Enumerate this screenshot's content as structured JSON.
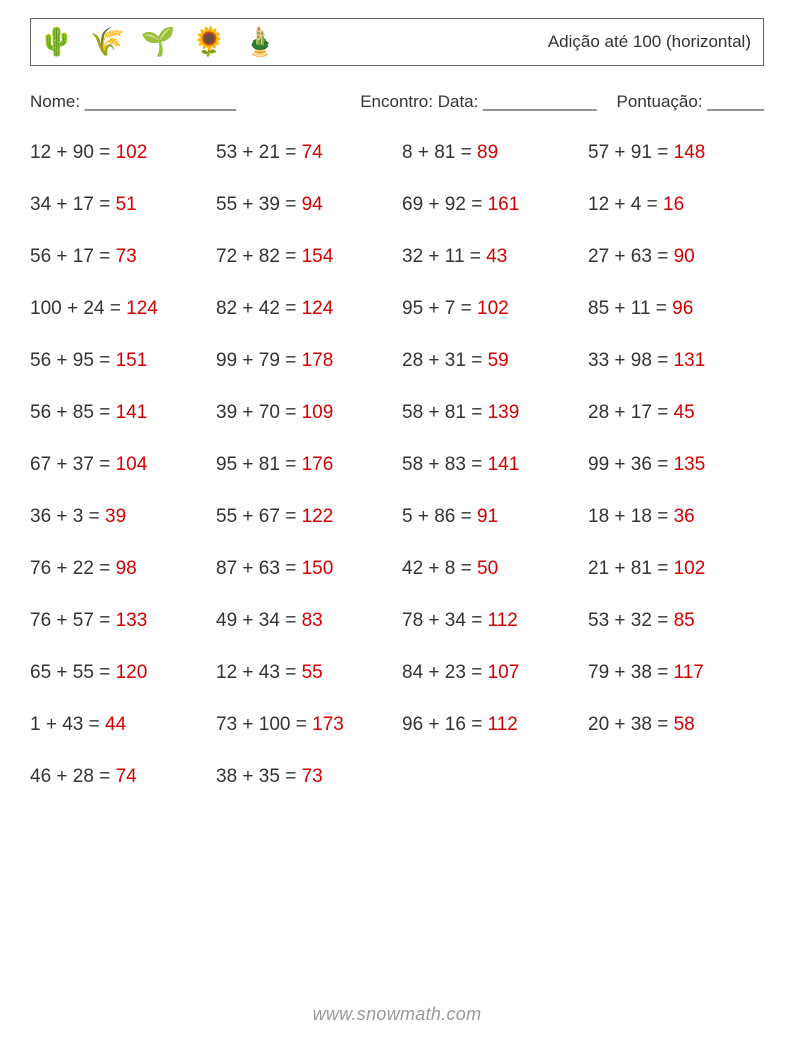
{
  "colors": {
    "text": "#333333",
    "answer": "#d40000",
    "border": "#666666",
    "footer": "#999999",
    "background": "#ffffff"
  },
  "typography": {
    "base_fontsize": 17,
    "problem_fontsize": 19,
    "footer_fontsize": 18,
    "icon_fontsize": 28,
    "row_gap": 30,
    "grid_columns": 4
  },
  "header": {
    "icons": [
      "🌵",
      "🌾",
      "🌱",
      "🌻",
      "🎍"
    ],
    "title": "Adição até 100 (horizontal)"
  },
  "info": {
    "name_label": "Nome: ________________",
    "date_label": "Encontro: Data: ____________",
    "score_label": "Pontuação: ______"
  },
  "problems": [
    {
      "a": 12,
      "b": 90,
      "ans": 102
    },
    {
      "a": 53,
      "b": 21,
      "ans": 74
    },
    {
      "a": 8,
      "b": 81,
      "ans": 89
    },
    {
      "a": 57,
      "b": 91,
      "ans": 148
    },
    {
      "a": 34,
      "b": 17,
      "ans": 51
    },
    {
      "a": 55,
      "b": 39,
      "ans": 94
    },
    {
      "a": 69,
      "b": 92,
      "ans": 161
    },
    {
      "a": 12,
      "b": 4,
      "ans": 16
    },
    {
      "a": 56,
      "b": 17,
      "ans": 73
    },
    {
      "a": 72,
      "b": 82,
      "ans": 154
    },
    {
      "a": 32,
      "b": 11,
      "ans": 43
    },
    {
      "a": 27,
      "b": 63,
      "ans": 90
    },
    {
      "a": 100,
      "b": 24,
      "ans": 124
    },
    {
      "a": 82,
      "b": 42,
      "ans": 124
    },
    {
      "a": 95,
      "b": 7,
      "ans": 102
    },
    {
      "a": 85,
      "b": 11,
      "ans": 96
    },
    {
      "a": 56,
      "b": 95,
      "ans": 151
    },
    {
      "a": 99,
      "b": 79,
      "ans": 178
    },
    {
      "a": 28,
      "b": 31,
      "ans": 59
    },
    {
      "a": 33,
      "b": 98,
      "ans": 131
    },
    {
      "a": 56,
      "b": 85,
      "ans": 141
    },
    {
      "a": 39,
      "b": 70,
      "ans": 109
    },
    {
      "a": 58,
      "b": 81,
      "ans": 139
    },
    {
      "a": 28,
      "b": 17,
      "ans": 45
    },
    {
      "a": 67,
      "b": 37,
      "ans": 104
    },
    {
      "a": 95,
      "b": 81,
      "ans": 176
    },
    {
      "a": 58,
      "b": 83,
      "ans": 141
    },
    {
      "a": 99,
      "b": 36,
      "ans": 135
    },
    {
      "a": 36,
      "b": 3,
      "ans": 39
    },
    {
      "a": 55,
      "b": 67,
      "ans": 122
    },
    {
      "a": 5,
      "b": 86,
      "ans": 91
    },
    {
      "a": 18,
      "b": 18,
      "ans": 36
    },
    {
      "a": 76,
      "b": 22,
      "ans": 98
    },
    {
      "a": 87,
      "b": 63,
      "ans": 150
    },
    {
      "a": 42,
      "b": 8,
      "ans": 50
    },
    {
      "a": 21,
      "b": 81,
      "ans": 102
    },
    {
      "a": 76,
      "b": 57,
      "ans": 133
    },
    {
      "a": 49,
      "b": 34,
      "ans": 83
    },
    {
      "a": 78,
      "b": 34,
      "ans": 112
    },
    {
      "a": 53,
      "b": 32,
      "ans": 85
    },
    {
      "a": 65,
      "b": 55,
      "ans": 120
    },
    {
      "a": 12,
      "b": 43,
      "ans": 55
    },
    {
      "a": 84,
      "b": 23,
      "ans": 107
    },
    {
      "a": 79,
      "b": 38,
      "ans": 117
    },
    {
      "a": 1,
      "b": 43,
      "ans": 44
    },
    {
      "a": 73,
      "b": 100,
      "ans": 173
    },
    {
      "a": 96,
      "b": 16,
      "ans": 112
    },
    {
      "a": 20,
      "b": 38,
      "ans": 58
    },
    {
      "a": 46,
      "b": 28,
      "ans": 74
    },
    {
      "a": 38,
      "b": 35,
      "ans": 73
    }
  ],
  "footer": {
    "text": "www.snowmath.com"
  }
}
